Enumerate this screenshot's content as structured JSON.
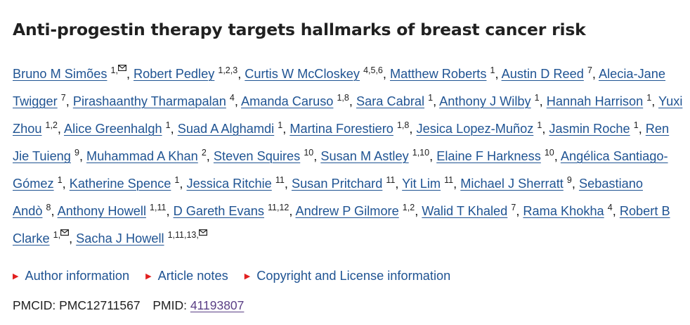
{
  "article": {
    "title": "Anti-progestin therapy targets hallmarks of breast cancer risk"
  },
  "authors": [
    {
      "name": "Bruno M Simões",
      "aff": "1,",
      "email": true
    },
    {
      "name": "Robert Pedley",
      "aff": "1,2,3"
    },
    {
      "name": "Curtis W McCloskey",
      "aff": "4,5,6"
    },
    {
      "name": "Matthew Roberts",
      "aff": "1"
    },
    {
      "name": "Austin D Reed",
      "aff": "7"
    },
    {
      "name": "Alecia-Jane Twigger",
      "aff": "7"
    },
    {
      "name": "Pirashaanthy Tharmapalan",
      "aff": "4"
    },
    {
      "name": "Amanda Caruso",
      "aff": "1,8"
    },
    {
      "name": "Sara Cabral",
      "aff": "1"
    },
    {
      "name": "Anthony J Wilby",
      "aff": "1"
    },
    {
      "name": "Hannah Harrison",
      "aff": "1"
    },
    {
      "name": "Yuxi Zhou",
      "aff": "1,2"
    },
    {
      "name": "Alice Greenhalgh",
      "aff": "1"
    },
    {
      "name": "Suad A Alghamdi",
      "aff": "1"
    },
    {
      "name": "Martina Forestiero",
      "aff": "1,8"
    },
    {
      "name": "Jesica Lopez-Muñoz",
      "aff": "1"
    },
    {
      "name": "Jasmin Roche",
      "aff": "1"
    },
    {
      "name": "Ren Jie Tuieng",
      "aff": "9"
    },
    {
      "name": "Muhammad A Khan",
      "aff": "2"
    },
    {
      "name": "Steven Squires",
      "aff": "10"
    },
    {
      "name": "Susan M Astley",
      "aff": "1,10"
    },
    {
      "name": "Elaine F Harkness",
      "aff": "10"
    },
    {
      "name": "Angélica Santiago-Gómez",
      "aff": "1"
    },
    {
      "name": "Katherine Spence",
      "aff": "1"
    },
    {
      "name": "Jessica Ritchie",
      "aff": "11"
    },
    {
      "name": "Susan Pritchard",
      "aff": "11"
    },
    {
      "name": "Yit Lim",
      "aff": "11"
    },
    {
      "name": "Michael J Sherratt",
      "aff": "9"
    },
    {
      "name": "Sebastiano Andò",
      "aff": "8"
    },
    {
      "name": "Anthony Howell",
      "aff": "1,11"
    },
    {
      "name": "D Gareth Evans",
      "aff": "11,12"
    },
    {
      "name": "Andrew P Gilmore",
      "aff": "1,2"
    },
    {
      "name": "Walid T Khaled",
      "aff": "7"
    },
    {
      "name": "Rama Khokha",
      "aff": "4"
    },
    {
      "name": "Robert B Clarke",
      "aff": "1,",
      "email": true
    },
    {
      "name": "Sacha J Howell",
      "aff": "1,11,13,",
      "email": true
    }
  ],
  "notes_links": [
    "Author information",
    "Article notes",
    "Copyright and License information"
  ],
  "ids": {
    "pmcid_label": "PMCID:",
    "pmcid": "PMC12711567",
    "pmid_label": "PMID:",
    "pmid": "41193807"
  },
  "icons": {
    "email": "envelope-icon",
    "expand": "triangle-right-icon"
  },
  "colors": {
    "link": "#205493",
    "text": "#212121",
    "marker": "#e21f1f",
    "visited": "#5a3e85"
  }
}
